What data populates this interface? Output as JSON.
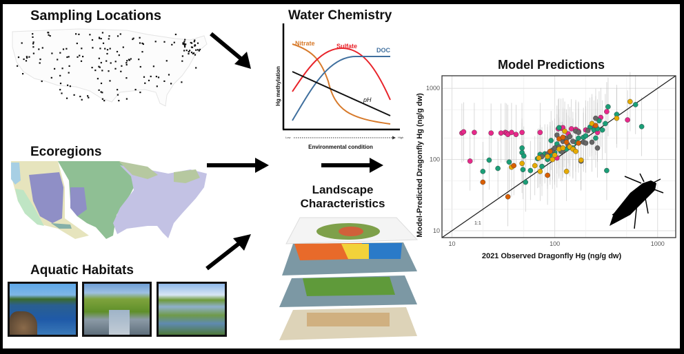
{
  "panels": {
    "sampling": {
      "title": "Sampling Locations"
    },
    "ecoregions": {
      "title": "Ecoregions"
    },
    "habitats": {
      "title": "Aquatic Habitats",
      "photos": [
        {
          "name": "mountain-lake-photo"
        },
        {
          "name": "river-photo"
        },
        {
          "name": "wetland-lily-pad-photo"
        }
      ]
    },
    "water_chemistry": {
      "title": "Water Chemistry",
      "ylabel": "Hg methylation",
      "xlabel": "Environmental condition",
      "x_low": "Low",
      "x_high": "High",
      "curves": {
        "nitrate": "Nitrate",
        "sulfate": "Sulfate",
        "doc": "DOC",
        "ph": "pH"
      }
    },
    "landscape": {
      "title_line1": "Landscape",
      "title_line2": "Characteristics"
    },
    "model": {
      "title": "Model Predictions",
      "xlabel": "2021 Observed Dragonfly Hg (ng/g dw)",
      "ylabel": "Model-Predicted Dragonfly Hg (ng/g dw)",
      "x_ticks": [
        "10",
        "100",
        "1000"
      ],
      "y_ticks": [
        "10",
        "100",
        "1000"
      ],
      "one_to_one": "1:1"
    }
  },
  "colors": {
    "nitrate": "#d77a2b",
    "sulfate": "#e8232a",
    "doc": "#3f6f9e",
    "ph": "#111111",
    "pink": "#e7298a",
    "teal": "#1b9e77",
    "gray": "#666666",
    "gold": "#e6ab02",
    "orange": "#d95f02"
  },
  "chart_data": [
    {
      "type": "line",
      "title": "Water Chemistry",
      "xlabel": "Environmental condition (Low → High)",
      "ylabel": "Hg methylation",
      "note": "Conceptual curves, no numeric axes",
      "series": [
        {
          "name": "Nitrate",
          "shape": "high at low values, declining sigmoid to low at high values"
        },
        {
          "name": "Sulfate",
          "shape": "unimodal, peaks at mid-range then declines"
        },
        {
          "name": "DOC",
          "shape": "increasing saturating curve, plateaus at high values"
        },
        {
          "name": "pH",
          "shape": "linear decline"
        }
      ]
    },
    {
      "type": "scatter",
      "title": "Model Predictions",
      "xlabel": "2021 Observed Dragonfly Hg (ng/g dw)",
      "ylabel": "Model-Predicted Dragonfly Hg (ng/g dw)",
      "xscale": "log",
      "yscale": "log",
      "xlim": [
        8,
        1500
      ],
      "ylim": [
        8,
        1500
      ],
      "x_ticks": [
        10,
        100,
        1000
      ],
      "y_ticks": [
        10,
        100,
        1000
      ],
      "reference_line": "1:1",
      "grid": true,
      "series": [
        {
          "name": "pink",
          "color": "#e7298a",
          "points": [
            [
              12.5,
              235
            ],
            [
              13,
              245
            ],
            [
              15,
              95
            ],
            [
              16.5,
              240
            ],
            [
              24,
              235
            ],
            [
              30,
              235
            ],
            [
              33,
              240
            ],
            [
              34,
              235
            ],
            [
              35,
              225
            ],
            [
              38,
              240
            ],
            [
              42,
              225
            ],
            [
              48,
              240
            ],
            [
              72,
              240
            ],
            [
              105,
              105
            ],
            [
              108,
              270
            ],
            [
              115,
              275
            ],
            [
              120,
              280
            ],
            [
              135,
              230
            ],
            [
              145,
              270
            ],
            [
              160,
              265
            ],
            [
              170,
              250
            ],
            [
              200,
              260
            ],
            [
              230,
              290
            ],
            [
              260,
              240
            ],
            [
              280,
              390
            ],
            [
              320,
              470
            ],
            [
              510,
              360
            ]
          ]
        },
        {
          "name": "teal",
          "color": "#1b9e77",
          "points": [
            [
              20,
              68
            ],
            [
              23,
              98
            ],
            [
              28,
              75
            ],
            [
              36,
              92
            ],
            [
              48,
              145
            ],
            [
              48,
              125
            ],
            [
              49,
              72
            ],
            [
              50,
              112
            ],
            [
              52,
              48
            ],
            [
              58,
              70
            ],
            [
              68,
              103
            ],
            [
              72,
              118
            ],
            [
              75,
              80
            ],
            [
              80,
              120
            ],
            [
              85,
              100
            ],
            [
              90,
              115
            ],
            [
              92,
              185
            ],
            [
              100,
              125
            ],
            [
              105,
              165
            ],
            [
              110,
              280
            ],
            [
              115,
              130
            ],
            [
              130,
              140
            ],
            [
              150,
              145
            ],
            [
              160,
              175
            ],
            [
              170,
              200
            ],
            [
              190,
              205
            ],
            [
              200,
              215
            ],
            [
              220,
              285
            ],
            [
              240,
              260
            ],
            [
              250,
              200
            ],
            [
              260,
              270
            ],
            [
              270,
              350
            ],
            [
              290,
              260
            ],
            [
              310,
              320
            ],
            [
              320,
              70
            ],
            [
              330,
              550
            ],
            [
              400,
              430
            ],
            [
              610,
              590
            ],
            [
              700,
              290
            ]
          ]
        },
        {
          "name": "gray",
          "color": "#666666",
          "points": [
            [
              75,
              110
            ],
            [
              85,
              120
            ],
            [
              95,
              135
            ],
            [
              100,
              145
            ],
            [
              105,
              220
            ],
            [
              110,
              150
            ],
            [
              118,
              130
            ],
            [
              120,
              180
            ],
            [
              125,
              200
            ],
            [
              130,
              195
            ],
            [
              135,
              160
            ],
            [
              140,
              210
            ],
            [
              150,
              180
            ],
            [
              160,
              250
            ],
            [
              170,
              240
            ],
            [
              180,
              95
            ],
            [
              190,
              175
            ],
            [
              200,
              170
            ],
            [
              210,
              255
            ],
            [
              230,
              175
            ],
            [
              250,
              380
            ],
            [
              260,
              145
            ]
          ]
        },
        {
          "name": "gold",
          "color": "#e6ab02",
          "points": [
            [
              38,
              78
            ],
            [
              48,
              88
            ],
            [
              64,
              82
            ],
            [
              70,
              105
            ],
            [
              72,
              68
            ],
            [
              85,
              110
            ],
            [
              95,
              100
            ],
            [
              100,
              115
            ],
            [
              110,
              140
            ],
            [
              120,
              145
            ],
            [
              125,
              250
            ],
            [
              130,
              68
            ],
            [
              140,
              150
            ],
            [
              150,
              140
            ],
            [
              160,
              130
            ],
            [
              180,
              98
            ],
            [
              230,
              320
            ],
            [
              400,
              380
            ],
            [
              540,
              650
            ]
          ]
        },
        {
          "name": "orange",
          "color": "#d95f02",
          "points": [
            [
              20,
              48
            ],
            [
              35,
              30
            ],
            [
              40,
              82
            ],
            [
              85,
              60
            ],
            [
              90,
              130
            ],
            [
              110,
              195
            ],
            [
              120,
              205
            ],
            [
              130,
              175
            ],
            [
              170,
              170
            ],
            [
              250,
              300
            ]
          ]
        }
      ]
    }
  ]
}
